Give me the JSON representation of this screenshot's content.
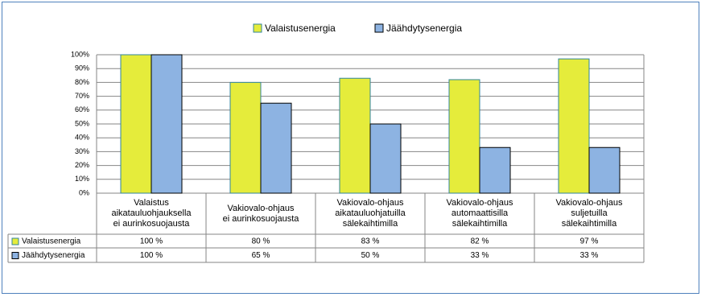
{
  "chart_data": {
    "type": "bar",
    "categories": [
      "Valaistus\naikatauluohjauksella\nei aurinkosuojausta",
      "Vakiovalo-ohjaus\nei aurinkosuojausta",
      "Vakiovalo-ohjaus\naikatauluohjatuilla\nsälekaihtimilla",
      "Vakiovalo-ohjaus\nautomaattisilla\nsälekaihtimilla",
      "Vakiovalo-ohjaus\nsuljetuilla\nsälekaihtimilla"
    ],
    "series": [
      {
        "name": "Valaistusenergia",
        "color": "#e5ec3b",
        "values": [
          100,
          80,
          83,
          82,
          97
        ],
        "value_labels": [
          "100 %",
          "80 %",
          "83 %",
          "82 %",
          "97 %"
        ]
      },
      {
        "name": "Jäähdytysenergia",
        "color": "#8db3e2",
        "values": [
          100,
          65,
          50,
          33,
          33
        ],
        "value_labels": [
          "100 %",
          "65 %",
          "50 %",
          "33 %",
          "33 %"
        ]
      }
    ],
    "ylim": [
      0,
      100
    ],
    "yticks": [
      {
        "value": 0,
        "label": "0%"
      },
      {
        "value": 10,
        "label": "10%"
      },
      {
        "value": 20,
        "label": "20%"
      },
      {
        "value": 30,
        "label": "30%"
      },
      {
        "value": 40,
        "label": "40%"
      },
      {
        "value": 50,
        "label": "50%"
      },
      {
        "value": 60,
        "label": "60%"
      },
      {
        "value": 70,
        "label": "70%"
      },
      {
        "value": 80,
        "label": "80%"
      },
      {
        "value": 90,
        "label": "90%"
      },
      {
        "value": 100,
        "label": "100%"
      }
    ],
    "grid": true
  }
}
